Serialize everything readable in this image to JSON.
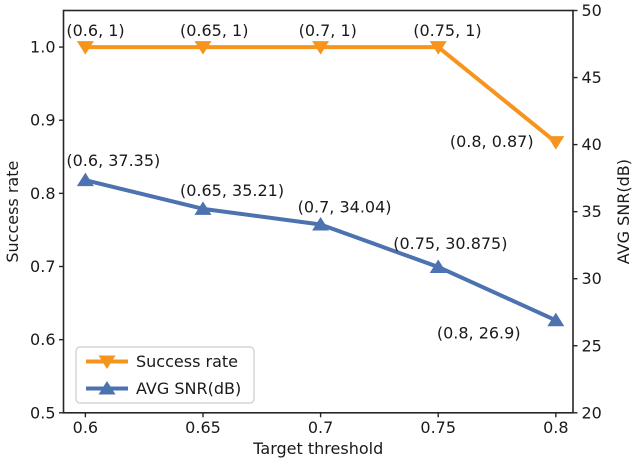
{
  "chart_data": {
    "type": "line",
    "title": "",
    "xlabel": "Target threshold",
    "x": [
      0.6,
      0.65,
      0.7,
      0.75,
      0.8
    ],
    "xtick_labels": [
      "0.6",
      "0.65",
      "0.7",
      "0.75",
      "0.8"
    ],
    "left_axis": {
      "label": "Success rate",
      "tick_values": [
        0.5,
        0.6,
        0.7,
        0.8,
        0.9,
        1.0
      ],
      "tick_labels": [
        "0.5",
        "0.6",
        "0.7",
        "0.8",
        "0.9",
        "1.0"
      ],
      "lim": [
        0.5,
        1.05
      ]
    },
    "right_axis": {
      "label": "AVG SNR(dB)",
      "tick_values": [
        20,
        25,
        30,
        35,
        40,
        45,
        50
      ],
      "tick_labels": [
        "20",
        "25",
        "30",
        "35",
        "40",
        "45",
        "50"
      ],
      "lim": [
        20,
        50
      ]
    },
    "series": [
      {
        "name": "Success rate",
        "axis": "left",
        "color": "#F7941E",
        "marker": "triangle-down",
        "values": [
          1,
          1,
          1,
          1,
          0.87
        ],
        "point_labels": [
          "(0.6, 1)",
          "(0.65, 1)",
          "(0.7, 1)",
          "(0.75, 1)",
          "(0.8, 0.87)"
        ]
      },
      {
        "name": "AVG SNR(dB)",
        "axis": "right",
        "color": "#4C72B0",
        "marker": "triangle-up",
        "values": [
          37.35,
          35.21,
          34.04,
          30.875,
          26.9
        ],
        "point_labels": [
          "(0.6, 37.35)",
          "(0.65, 35.21)",
          "(0.7, 34.04)",
          "(0.75, 30.875)",
          "(0.8, 26.9)"
        ]
      }
    ],
    "legend": {
      "position": "lower left",
      "entries": [
        "Success rate",
        "AVG SNR(dB)"
      ],
      "border_color": "#cccccc",
      "background": "#ffffff"
    },
    "grid": false
  },
  "colors": {
    "background": "#ffffff",
    "spine": "#262626",
    "text": "#1a1a1a"
  }
}
